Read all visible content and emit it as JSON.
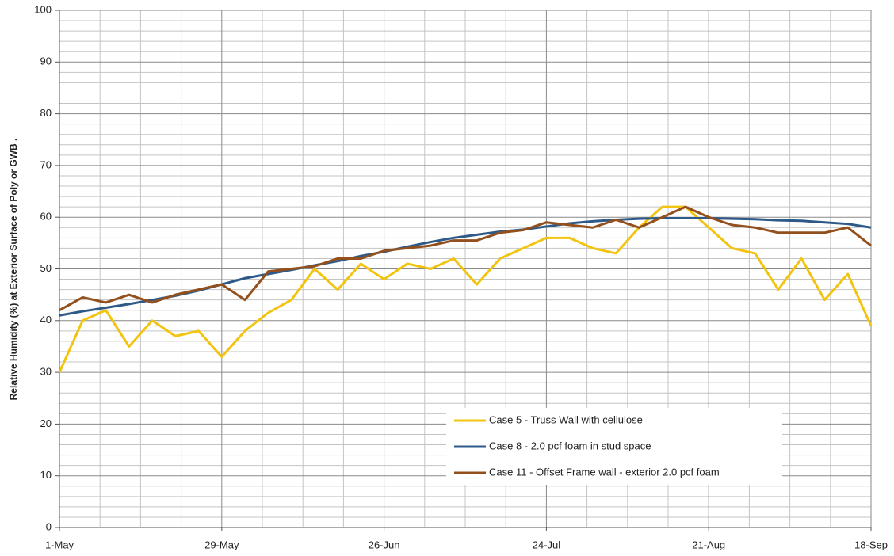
{
  "chart_data": {
    "type": "line",
    "y_label": "Relative Humidity (%) at Exterior Surface of Poly or GWB .",
    "x": [
      "1-May",
      "5-May",
      "9-May",
      "13-May",
      "17-May",
      "21-May",
      "25-May",
      "29-May",
      "2-Jun",
      "6-Jun",
      "10-Jun",
      "14-Jun",
      "18-Jun",
      "22-Jun",
      "26-Jun",
      "30-Jun",
      "4-Jul",
      "8-Jul",
      "12-Jul",
      "16-Jul",
      "20-Jul",
      "24-Jul",
      "28-Jul",
      "1-Aug",
      "5-Aug",
      "9-Aug",
      "13-Aug",
      "17-Aug",
      "21-Aug",
      "25-Aug",
      "29-Aug",
      "2-Sep",
      "6-Sep",
      "10-Sep",
      "14-Sep",
      "18-Sep"
    ],
    "series": [
      {
        "name": "Case 5 - Truss Wall with cellulose",
        "color": "#f2c40f",
        "values": [
          30,
          40,
          42,
          35,
          40,
          37,
          38,
          33,
          38,
          41.5,
          44,
          50,
          46,
          51,
          48,
          51,
          50,
          52,
          47,
          52,
          54,
          56,
          56,
          54,
          53,
          58,
          62,
          62,
          58,
          54,
          53,
          46,
          52,
          44,
          49,
          39
        ]
      },
      {
        "name": "Case 8 - 2.0 pcf foam in stud space",
        "color": "#2d5a88",
        "values": [
          41,
          41.8,
          42.5,
          43.2,
          44,
          44.8,
          45.8,
          47,
          48.2,
          49,
          49.8,
          50.7,
          51.5,
          52.5,
          53.3,
          54.3,
          55.2,
          56,
          56.6,
          57.2,
          57.6,
          58.2,
          58.8,
          59.2,
          59.5,
          59.7,
          59.8,
          59.8,
          59.8,
          59.7,
          59.6,
          59.4,
          59.3,
          59,
          58.7,
          58
        ]
      },
      {
        "name": "Case 11 - Offset Frame wall - exterior 2.0 pcf foam",
        "color": "#93501d",
        "values": [
          42,
          44.5,
          43.5,
          45,
          43.5,
          45,
          46,
          47,
          44,
          49.5,
          50,
          50.5,
          52,
          52,
          53.5,
          54,
          54.5,
          55.5,
          55.5,
          57,
          57.5,
          59,
          58.5,
          58,
          59.5,
          58,
          60,
          62,
          60,
          58.5,
          58,
          57,
          57,
          57,
          58,
          54.5
        ]
      }
    ],
    "xlim": [
      "1-May",
      "18-Sep"
    ],
    "xticks": [
      "1-May",
      "29-May",
      "26-Jun",
      "24-Jul",
      "21-Aug",
      "18-Sep"
    ],
    "x_minor_ticks": [
      "8-May",
      "15-May",
      "22-May",
      "5-Jun",
      "12-Jun",
      "19-Jun",
      "3-Jul",
      "10-Jul",
      "17-Jul",
      "31-Jul",
      "7-Aug",
      "14-Aug",
      "28-Aug",
      "4-Sep",
      "11-Sep"
    ],
    "ylim": [
      0,
      100
    ],
    "yticks": [
      0,
      10,
      20,
      30,
      40,
      50,
      60,
      70,
      80,
      90,
      100
    ],
    "y_minor_ticks": [
      2,
      4,
      6,
      8,
      12,
      14,
      16,
      18,
      22,
      24,
      26,
      28,
      32,
      34,
      36,
      38,
      42,
      44,
      46,
      48,
      52,
      54,
      56,
      58,
      62,
      64,
      66,
      68,
      72,
      74,
      76,
      78,
      82,
      84,
      86,
      88,
      92,
      94,
      96,
      98
    ],
    "grid": true,
    "legend_position": "lower right"
  }
}
